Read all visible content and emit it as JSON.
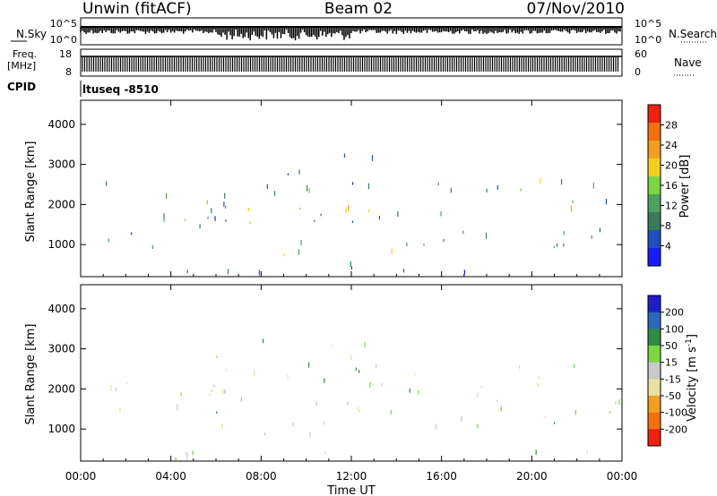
{
  "header": {
    "station": "Unwin (fitACF)",
    "beam": "Beam 02",
    "date": "07/Nov/2010"
  },
  "noise_panel": {
    "left_label": "N.Sky",
    "left_ticks": [
      "10^5",
      "10^0"
    ],
    "right_ticks": [
      "10^5",
      "10^0"
    ],
    "right_label": "N.Search"
  },
  "freq_panel": {
    "left_label_1": "Freq.",
    "left_label_2": "[MHz]",
    "left_ticks": [
      "18",
      "8"
    ],
    "right_ticks": [
      "60",
      "0"
    ],
    "right_label": "Nave"
  },
  "cpid": {
    "label": "CPID",
    "value": "ltuseq -8510"
  },
  "x_axis": {
    "label": "Time UT",
    "ticks": [
      "00:00",
      "04:00",
      "08:00",
      "12:00",
      "16:00",
      "20:00",
      "00:00"
    ]
  },
  "colors": {
    "power_scale": [
      "#1a1aff",
      "#2050c0",
      "#3a7a5a",
      "#4fa060",
      "#7cd640",
      "#f0d020",
      "#f0a020",
      "#f07010",
      "#ee2010"
    ],
    "velocity_scale": [
      "#1e1ec8",
      "#2c6ab8",
      "#2f8a46",
      "#7cd640",
      "#c8c8c8",
      "#e8e0a0",
      "#f0a020",
      "#f07010",
      "#ee2010"
    ]
  },
  "chart_data": [
    {
      "type": "heatmap",
      "name": "power",
      "ylabel": "Slant Range [km]",
      "yticks": [
        1000,
        2000,
        3000,
        4000
      ],
      "ylim": [
        200,
        4600
      ],
      "xlim_hours": [
        0,
        24
      ],
      "colorbar": {
        "label": "Power [dB]",
        "ticks": [
          4,
          8,
          12,
          16,
          20,
          24,
          28
        ],
        "range": [
          0,
          32
        ]
      },
      "regions": [
        {
          "t0": 0.5,
          "t1": 6.5,
          "r0": 800,
          "r1": 2500,
          "mean": 6
        },
        {
          "t0": 3.5,
          "t1": 14.0,
          "r0": 1300,
          "r1": 2300,
          "mean": 13
        },
        {
          "t0": 6.0,
          "t1": 13.5,
          "r0": 2300,
          "r1": 3300,
          "mean": 8
        },
        {
          "t0": 6.5,
          "t1": 13.0,
          "r0": 1500,
          "r1": 2100,
          "mean": 20
        },
        {
          "t0": 8.0,
          "t1": 14.0,
          "r0": 700,
          "r1": 1300,
          "mean": 17
        },
        {
          "t0": 12.0,
          "t1": 17.5,
          "r0": 900,
          "r1": 2600,
          "mean": 8
        },
        {
          "t0": 17.5,
          "t1": 24.0,
          "r0": 900,
          "r1": 2700,
          "mean": 10
        },
        {
          "t0": 19.5,
          "t1": 22.5,
          "r0": 1800,
          "r1": 2600,
          "mean": 17
        },
        {
          "t0": 0.0,
          "t1": 24.0,
          "r0": 200,
          "r1": 450,
          "mean": 5
        }
      ]
    },
    {
      "type": "heatmap",
      "name": "velocity",
      "ylabel": "Slant Range [km]",
      "yticks": [
        1000,
        2000,
        3000,
        4000
      ],
      "ylim": [
        200,
        4600
      ],
      "xlim_hours": [
        0,
        24
      ],
      "colorbar": {
        "label": "Velocity [m s^-1]",
        "ticks": [
          200,
          100,
          50,
          15,
          -15,
          -50,
          -100,
          -200
        ],
        "range": [
          -250,
          250
        ]
      },
      "regions": [
        {
          "t0": 0.5,
          "t1": 6.5,
          "r0": 800,
          "r1": 2500,
          "mean": 0
        },
        {
          "t0": 3.5,
          "t1": 14.0,
          "r0": 1300,
          "r1": 2300,
          "mean": -40
        },
        {
          "t0": 6.0,
          "t1": 13.5,
          "r0": 2300,
          "r1": 3300,
          "mean": -40
        },
        {
          "t0": 8.0,
          "t1": 13.5,
          "r0": 700,
          "r1": 1300,
          "mean": 10
        },
        {
          "t0": 12.0,
          "t1": 17.5,
          "r0": 900,
          "r1": 2600,
          "mean": -10
        },
        {
          "t0": 17.0,
          "t1": 18.0,
          "r0": 700,
          "r1": 2200,
          "mean": 30
        },
        {
          "t0": 17.5,
          "t1": 24.0,
          "r0": 900,
          "r1": 2700,
          "mean": 0
        },
        {
          "t0": 0.0,
          "t1": 24.0,
          "r0": 200,
          "r1": 450,
          "mean": -40
        }
      ]
    }
  ]
}
